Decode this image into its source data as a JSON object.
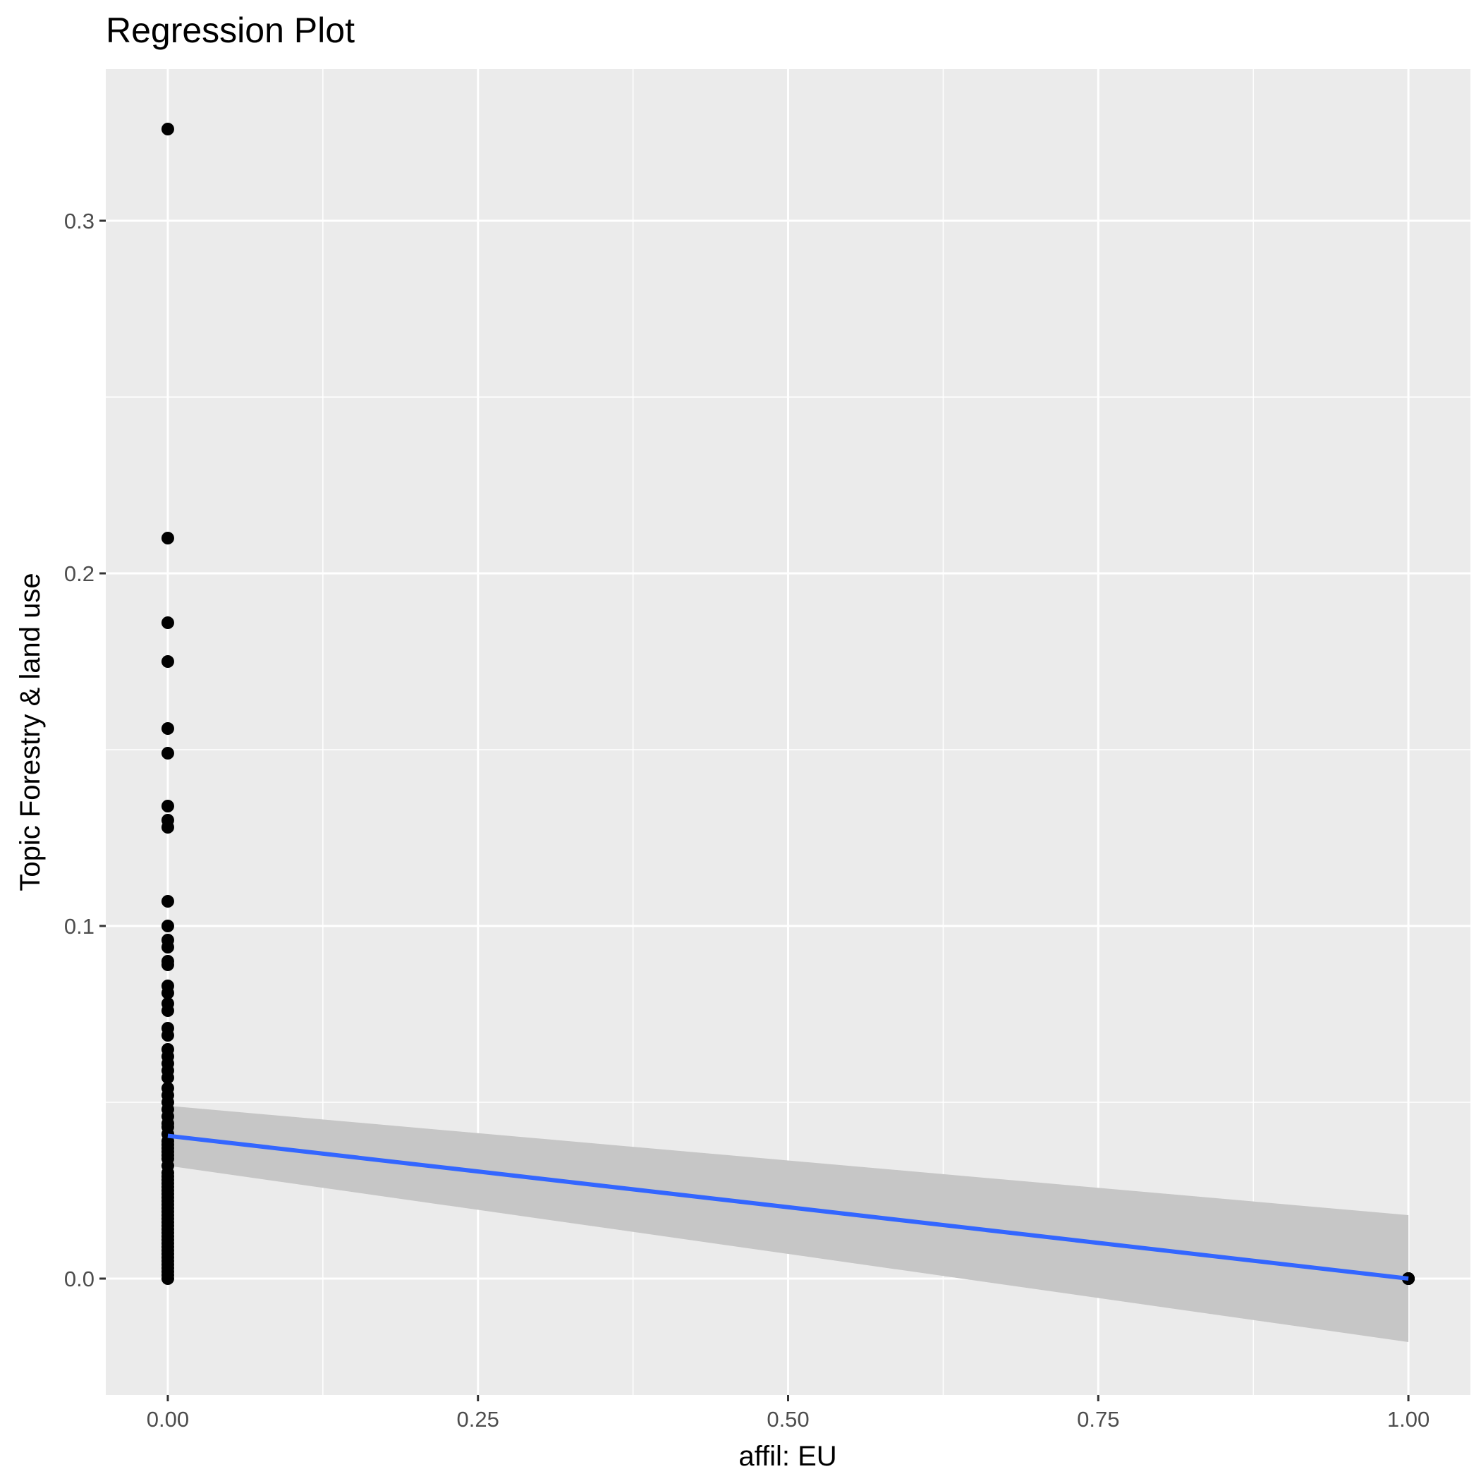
{
  "chart_data": {
    "type": "scatter",
    "title": "Regression Plot",
    "xlabel": "affil: EU",
    "ylabel": "Topic Forestry & land use",
    "xlim": [
      -0.05,
      1.05
    ],
    "ylim": [
      -0.033,
      0.343
    ],
    "x_ticks": [
      0,
      0.25,
      0.5,
      0.75,
      1
    ],
    "x_tick_labels": [
      "0.00",
      "0.25",
      "0.50",
      "0.75",
      "1.00"
    ],
    "y_ticks": [
      0,
      0.1,
      0.2,
      0.3
    ],
    "y_tick_labels": [
      "0.0",
      "0.1",
      "0.2",
      "0.3"
    ],
    "grid": true,
    "legend": "none",
    "colors": {
      "panel_background": "#ebebeb",
      "grid_line": "#ffffff",
      "point": "#000000",
      "fit_line": "#3366ff",
      "confidence_band": "#c6c6c6"
    },
    "points": {
      "x": [
        0,
        0,
        0,
        0,
        0,
        0,
        0,
        0,
        0,
        0,
        0,
        0,
        0,
        0,
        0,
        0,
        0,
        0,
        0,
        0,
        0,
        0,
        0,
        0,
        0,
        0,
        0,
        0,
        0,
        0,
        0,
        0,
        0,
        0,
        0,
        0,
        0,
        0,
        0,
        0,
        0,
        0,
        0,
        0,
        0,
        0,
        0,
        0,
        0,
        0,
        0,
        0,
        0,
        0,
        0,
        0,
        0,
        0,
        0,
        0,
        0,
        0,
        0,
        0,
        0,
        0,
        0,
        0,
        0,
        0,
        0,
        0,
        1,
        1,
        1
      ],
      "y": [
        0.326,
        0.21,
        0.186,
        0.175,
        0.156,
        0.149,
        0.134,
        0.13,
        0.128,
        0.107,
        0.1,
        0.096,
        0.094,
        0.09,
        0.089,
        0.083,
        0.081,
        0.078,
        0.076,
        0.071,
        0.069,
        0.065,
        0.063,
        0.061,
        0.059,
        0.057,
        0.054,
        0.052,
        0.05,
        0.048,
        0.046,
        0.044,
        0.043,
        0.041,
        0.039,
        0.038,
        0.037,
        0.036,
        0.035,
        0.034,
        0.032,
        0.03,
        0.029,
        0.028,
        0.027,
        0.026,
        0.025,
        0.024,
        0.023,
        0.022,
        0.021,
        0.02,
        0.019,
        0.018,
        0.017,
        0.016,
        0.015,
        0.014,
        0.013,
        0.012,
        0.011,
        0.01,
        0.009,
        0.008,
        0.007,
        0.006,
        0.005,
        0.004,
        0.003,
        0.002,
        0.001,
        0,
        0,
        0,
        0
      ]
    },
    "fit": {
      "x": [
        0,
        1
      ],
      "y": [
        0.0405,
        0.0
      ],
      "ci_lower": [
        0.032,
        -0.018
      ],
      "ci_upper": [
        0.049,
        0.018
      ]
    }
  }
}
